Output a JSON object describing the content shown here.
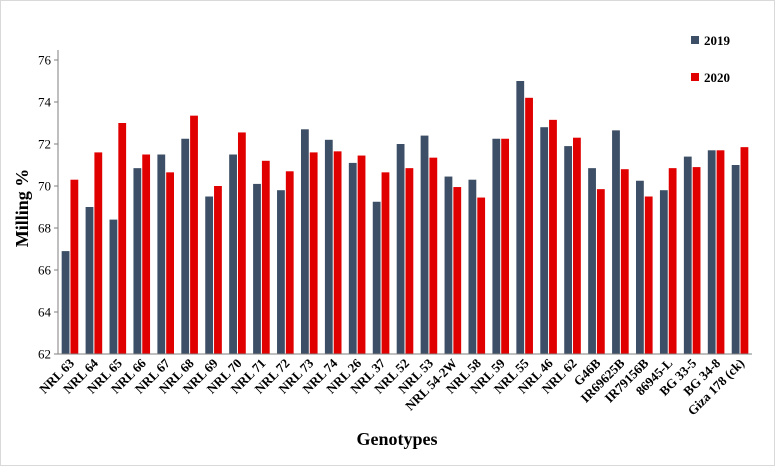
{
  "chart_data": {
    "type": "bar",
    "xlabel": "Genotypes",
    "ylabel": "Milling %",
    "ylim": [
      62,
      76
    ],
    "yticks": [
      62,
      64,
      66,
      68,
      70,
      72,
      74,
      76
    ],
    "grid": false,
    "legend_position": "top-right",
    "categories": [
      "NRL 63",
      "NRL 64",
      "NRL 65",
      "NRL 66",
      "NRL 67",
      "NRL 68",
      "NRL 69",
      "NRL 70",
      "NRL 71",
      "NRL 72",
      "NRL 73",
      "NRL 74",
      "NRL 26",
      "NRL 37",
      "NRL 52",
      "NRL 53",
      "NRL 54-2W",
      "NRL 58",
      "NRL 59",
      "NRL 55",
      "NRL 46",
      "NRL 62",
      "G46B",
      "IR69625B",
      "IR79156B",
      "86945-L",
      "BG 33-5",
      "BG 34-8",
      "Giza 178 (ck)"
    ],
    "series": [
      {
        "name": "2019",
        "color": "#3d4f66",
        "values": [
          66.9,
          69.0,
          68.4,
          70.85,
          71.5,
          72.25,
          69.5,
          71.5,
          70.1,
          69.8,
          72.7,
          72.2,
          71.1,
          69.25,
          72.0,
          72.4,
          70.45,
          70.3,
          72.25,
          75.0,
          72.8,
          71.9,
          70.85,
          72.65,
          70.25,
          69.8,
          71.4,
          71.7,
          71.0
        ]
      },
      {
        "name": "2020",
        "color": "#e00000",
        "values": [
          70.3,
          71.6,
          73.0,
          71.5,
          70.65,
          73.35,
          70.0,
          72.55,
          71.2,
          70.7,
          71.6,
          71.65,
          71.45,
          70.65,
          70.85,
          71.35,
          69.95,
          69.45,
          72.25,
          74.2,
          73.15,
          72.3,
          69.85,
          70.8,
          69.5,
          70.85,
          70.9,
          71.7,
          71.85
        ]
      }
    ]
  }
}
